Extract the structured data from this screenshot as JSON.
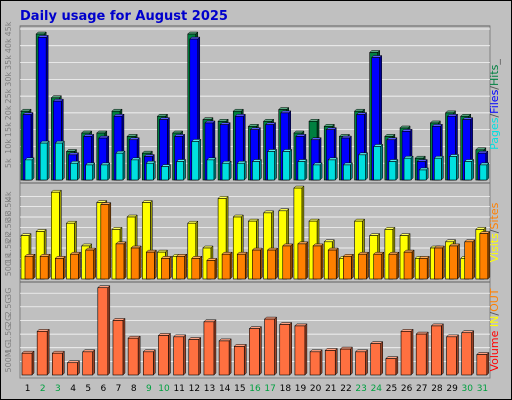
{
  "chart_data": [
    {
      "type": "bar",
      "title": "Daily usage for August 2025",
      "ylabel_parts": [
        {
          "text": "Pages",
          "color": "#00e0e0"
        },
        {
          "text": "/",
          "color": "#555555"
        },
        {
          "text": "Files",
          "color": "#0000ff"
        },
        {
          "text": "/",
          "color": "#555555"
        },
        {
          "text": "Hits",
          "color": "#008040"
        },
        {
          "text": "_",
          "color": "#555555"
        }
      ],
      "ylim": [
        0,
        45000
      ],
      "yticks": [
        {
          "v": 5000,
          "label": "5k"
        },
        {
          "v": 10000,
          "label": "10k"
        },
        {
          "v": 15000,
          "label": "15k"
        },
        {
          "v": 20000,
          "label": "20k"
        },
        {
          "v": 25000,
          "label": "25k"
        },
        {
          "v": 30000,
          "label": "30k"
        },
        {
          "v": 35000,
          "label": "35k"
        },
        {
          "v": 40000,
          "label": "40k"
        },
        {
          "v": 45000,
          "label": "45k"
        }
      ],
      "series": [
        {
          "name": "Hits",
          "color": "#008040",
          "values": [
            20500,
            43500,
            24500,
            8500,
            14000,
            14000,
            20500,
            13000,
            8000,
            19000,
            14000,
            43500,
            18000,
            17500,
            20500,
            16000,
            17500,
            21000,
            14000,
            17500,
            16000,
            13000,
            20500,
            38000,
            13000,
            15500,
            6500,
            17000,
            20000,
            19000,
            9000
          ]
        },
        {
          "name": "Files",
          "color": "#0000ff",
          "values": [
            19500,
            42500,
            23500,
            7500,
            13000,
            12500,
            19000,
            12000,
            7000,
            18000,
            13000,
            42000,
            17000,
            16500,
            19000,
            15000,
            16500,
            20000,
            13000,
            12000,
            15000,
            12500,
            19500,
            36500,
            12000,
            14500,
            5500,
            16000,
            19000,
            18000,
            8000
          ]
        },
        {
          "name": "Pages",
          "color": "#00e0e0",
          "values": [
            6000,
            11000,
            11000,
            5000,
            4500,
            4500,
            8000,
            6000,
            5000,
            4000,
            5500,
            11500,
            6000,
            5000,
            5000,
            5500,
            8500,
            8500,
            5500,
            4500,
            6000,
            4500,
            7500,
            10000,
            5500,
            6500,
            3000,
            6500,
            7000,
            5500,
            4500
          ]
        }
      ]
    },
    {
      "type": "bar",
      "ylabel_parts": [
        {
          "text": "Visits",
          "color": "#ffff00"
        },
        {
          "text": "/",
          "color": "#555555"
        },
        {
          "text": "Sites",
          "color": "#ff8000"
        }
      ],
      "ylim": [
        0,
        4500
      ],
      "yticks": [
        {
          "v": 500,
          "label": "500"
        },
        {
          "v": 1000,
          "label": "1k"
        },
        {
          "v": 1500,
          "label": "1.5k"
        },
        {
          "v": 2000,
          "label": "2k"
        },
        {
          "v": 2500,
          "label": "2.5k"
        },
        {
          "v": 3000,
          "label": "3k"
        },
        {
          "v": 3500,
          "label": "3.5k"
        },
        {
          "v": 4000,
          "label": "4k"
        }
      ],
      "series": [
        {
          "name": "Visits",
          "color": "#ffff00",
          "values": [
            2100,
            2300,
            4200,
            2700,
            1600,
            3700,
            2400,
            3000,
            3700,
            1300,
            1100,
            2700,
            1500,
            3900,
            3000,
            2800,
            3200,
            3300,
            4400,
            2800,
            1800,
            1000,
            2800,
            2100,
            2400,
            2100,
            1000,
            1500,
            1800,
            1000,
            2400
          ]
        },
        {
          "name": "Sites",
          "color": "#ff8000",
          "values": [
            1100,
            1100,
            1000,
            1200,
            1400,
            3600,
            1700,
            1500,
            1300,
            1000,
            1100,
            1000,
            900,
            1200,
            1200,
            1400,
            1400,
            1600,
            1700,
            1600,
            1400,
            1100,
            1200,
            1200,
            1200,
            1300,
            1000,
            1500,
            1600,
            1800,
            2200
          ]
        }
      ]
    },
    {
      "type": "bar",
      "ylabel_parts": [
        {
          "text": "Volume",
          "color": "#ff0000"
        },
        {
          "text": "  ",
          "color": "#555555"
        },
        {
          "text": "IN",
          "color": "#ffff00"
        },
        {
          "text": "/",
          "color": "#555555"
        },
        {
          "text": "OUT",
          "color": "#ff8000"
        }
      ],
      "ylim": [
        0,
        3300
      ],
      "yticks": [
        {
          "v": 500,
          "label": "500M"
        },
        {
          "v": 1000,
          "label": "1G"
        },
        {
          "v": 1500,
          "label": "1.5G"
        },
        {
          "v": 2000,
          "label": "2G"
        },
        {
          "v": 2500,
          "label": "2.5G"
        },
        {
          "v": 3000,
          "label": "3G"
        }
      ],
      "series": [
        {
          "name": "Volume",
          "color": "#ff6040",
          "values": [
            800,
            1600,
            800,
            450,
            850,
            3200,
            2000,
            1350,
            850,
            1450,
            1400,
            1300,
            1950,
            1250,
            1050,
            1700,
            2050,
            1850,
            1800,
            850,
            900,
            950,
            850,
            1150,
            600,
            1600,
            1500,
            1800,
            1400,
            1550,
            750
          ]
        }
      ],
      "categories": [
        "1",
        "2",
        "3",
        "4",
        "5",
        "6",
        "7",
        "8",
        "9",
        "10",
        "11",
        "12",
        "13",
        "14",
        "15",
        "16",
        "17",
        "18",
        "19",
        "20",
        "21",
        "22",
        "23",
        "24",
        "25",
        "26",
        "27",
        "28",
        "29",
        "30",
        "31"
      ],
      "weekend_color": "#00a040",
      "weekday_color": "#000000",
      "weekends": [
        2,
        3,
        9,
        10,
        16,
        17,
        23,
        24,
        30,
        31
      ]
    }
  ]
}
